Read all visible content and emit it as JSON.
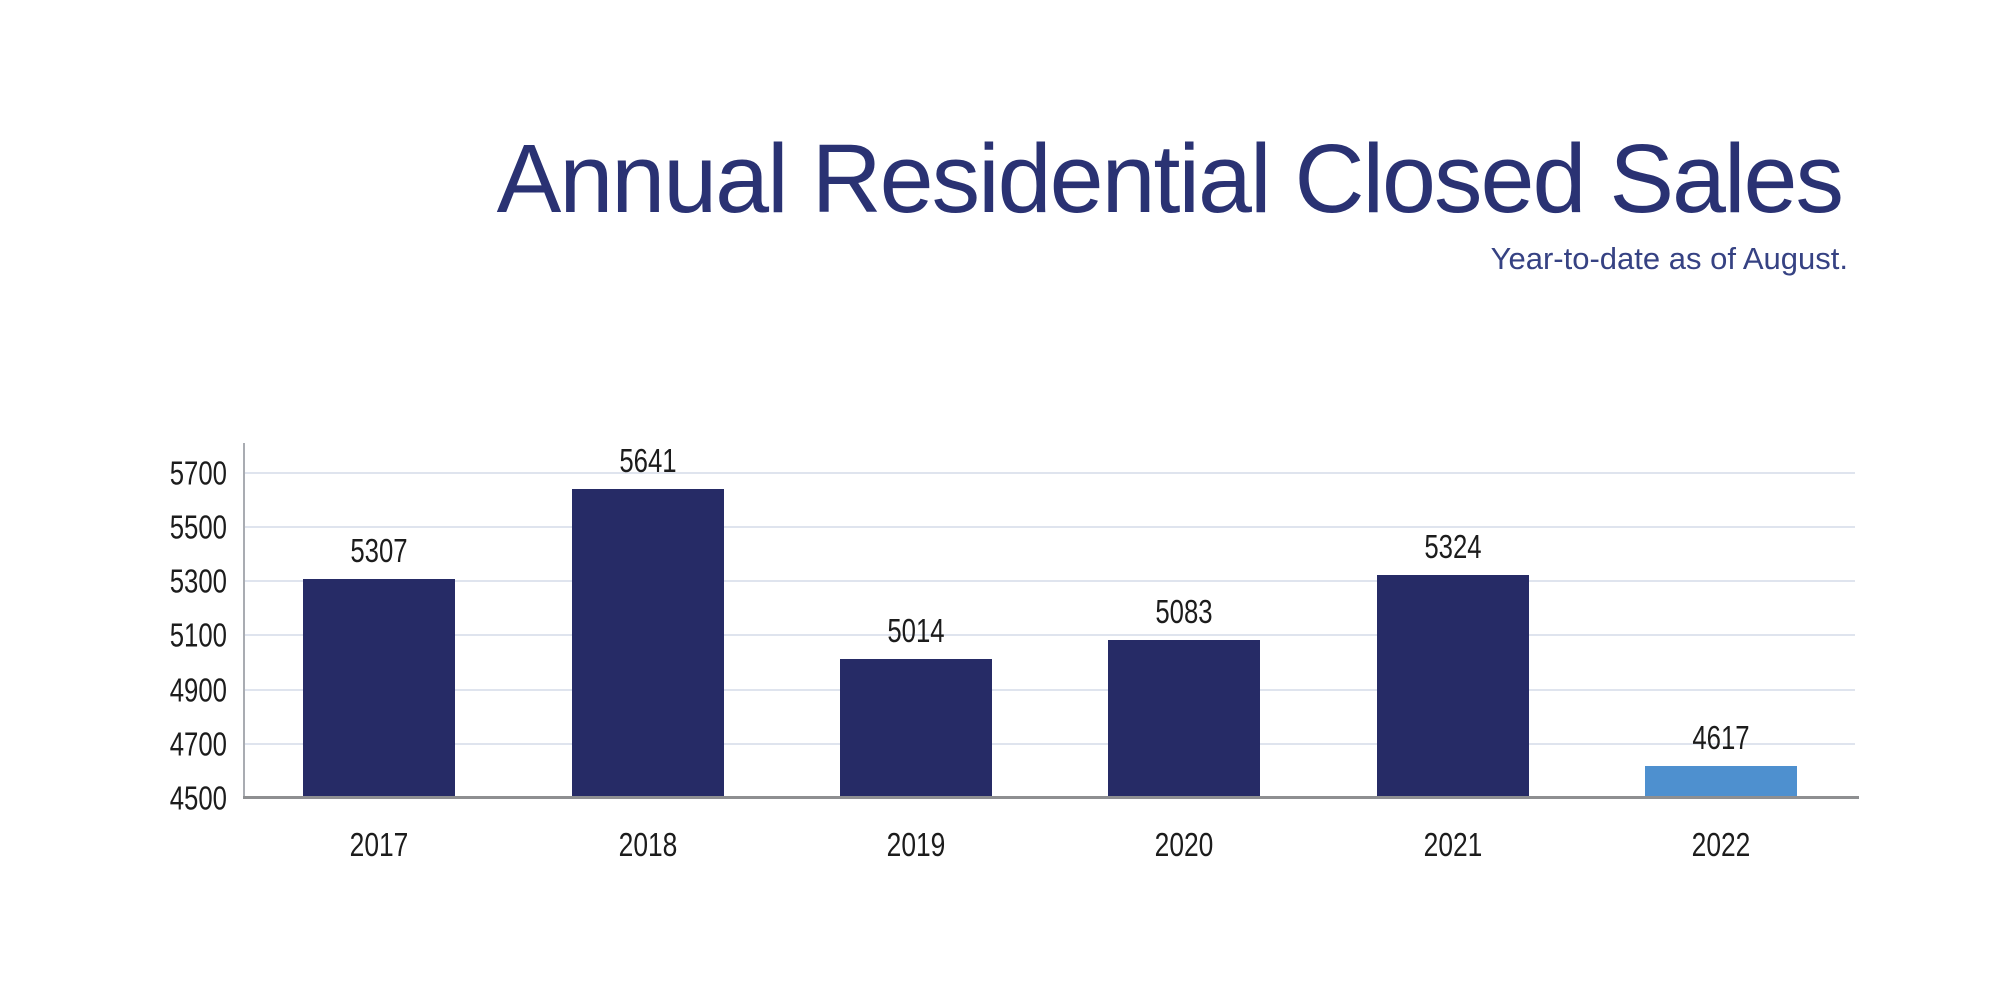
{
  "chart_data": {
    "type": "bar",
    "title": "Annual Residential Closed Sales",
    "subtitle": "Year-to-date as of August.",
    "categories": [
      "2017",
      "2018",
      "2019",
      "2020",
      "2021",
      "2022"
    ],
    "values": [
      5307,
      5641,
      5014,
      5083,
      5324,
      4617
    ],
    "yticks": [
      5700,
      5500,
      5300,
      5100,
      4900,
      4700,
      4500
    ],
    "ylim": [
      4500,
      5810
    ],
    "xlabel": "",
    "ylabel": "",
    "grid": "horizontal-light",
    "legend": "none",
    "bar_colors": [
      "#262B66",
      "#262B66",
      "#262B66",
      "#262B66",
      "#262B66",
      "#4E90CF"
    ]
  },
  "colors": {
    "title_text": "#2A3273",
    "subtitle_text": "#364283",
    "bar_navy": "#262B66",
    "bar_highlight": "#4E90CF",
    "gridline": "#DFE4EE",
    "y_axis_line": "#A9ACB2",
    "baseline": "#8E8F91",
    "tick_text": "#1C1C1C",
    "background": "#FFFFFF"
  }
}
